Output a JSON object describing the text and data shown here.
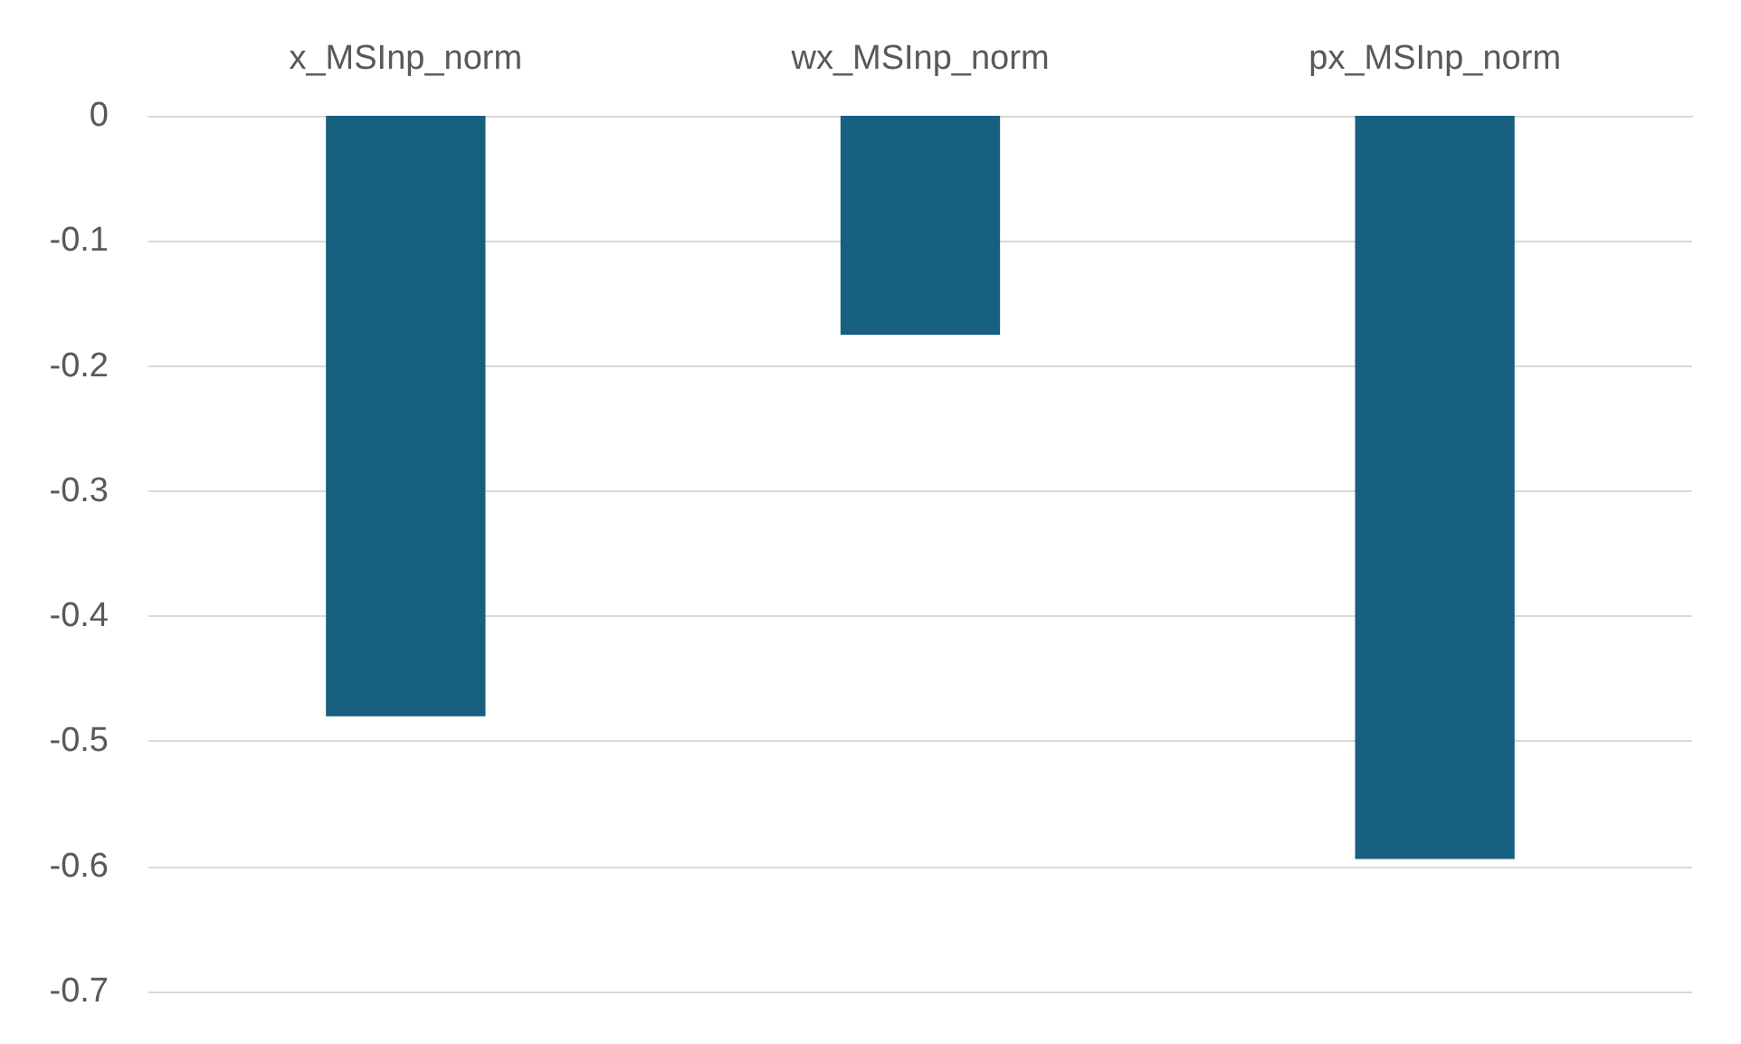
{
  "chart_data": {
    "type": "bar",
    "categories": [
      "x_MSInp_norm",
      "wx_MSInp_norm",
      "px_MSInp_norm"
    ],
    "values": [
      -0.48,
      -0.175,
      -0.594
    ],
    "color": "#17607f",
    "ylim": [
      -0.7,
      0
    ],
    "yticks": [
      0,
      -0.1,
      -0.2,
      -0.3,
      -0.4,
      -0.5,
      -0.6,
      -0.7
    ],
    "grid": "y"
  }
}
